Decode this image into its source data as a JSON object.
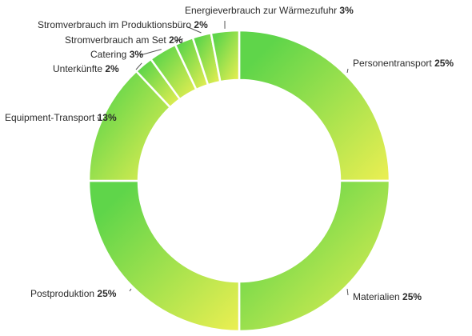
{
  "chart_data": {
    "type": "pie",
    "donut": true,
    "title": "",
    "slices": [
      {
        "label": "Personentransport",
        "value": 25,
        "value_label": "25%"
      },
      {
        "label": "Materialien",
        "value": 25,
        "value_label": "25%"
      },
      {
        "label": "Postproduktion",
        "value": 25,
        "value_label": "25%"
      },
      {
        "label": "Equipment-Transport",
        "value": 13,
        "value_label": "13%"
      },
      {
        "label": "Unterkünfte",
        "value": 2,
        "value_label": "2%"
      },
      {
        "label": "Catering",
        "value": 3,
        "value_label": "3%"
      },
      {
        "label": "Stromverbrauch am Set",
        "value": 2,
        "value_label": "2%"
      },
      {
        "label": "Stromverbrauch im Produktionsbüro",
        "value": 2,
        "value_label": "2%"
      },
      {
        "label": "Energieverbrauch zur Wärmezufuhr",
        "value": 3,
        "value_label": "3%"
      }
    ],
    "colors": {
      "gradient_start": "#5fd54a",
      "gradient_end": "#ecef52",
      "separator": "#ffffff"
    }
  }
}
